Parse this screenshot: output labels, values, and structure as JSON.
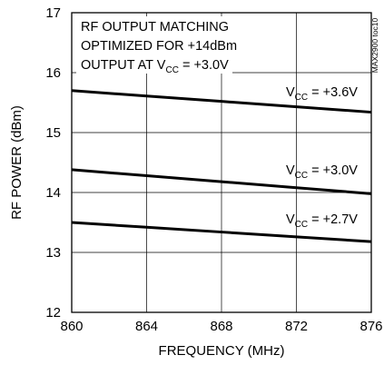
{
  "chart_data": {
    "type": "line",
    "title": "",
    "xlabel": "FREQUENCY (MHz)",
    "ylabel": "RF POWER (dBm)",
    "xlim": [
      860,
      876
    ],
    "ylim": [
      12,
      17
    ],
    "x_ticks": [
      "860",
      "864",
      "868",
      "872",
      "876"
    ],
    "y_ticks": [
      "12",
      "13",
      "14",
      "15",
      "16",
      "17"
    ],
    "grid": true,
    "annotation": {
      "line1": "RF OUTPUT MATCHING",
      "line2": "OPTIMIZED FOR +14dBm",
      "line3_prefix": "OUTPUT AT V",
      "line3_sub": "CC",
      "line3_suffix": " = +3.0V"
    },
    "figure_code": "MAX2900 toc10",
    "series": [
      {
        "label_prefix": "V",
        "label_sub": "CC",
        "label_suffix": " = +3.6V",
        "x": [
          860,
          864,
          868,
          872,
          876
        ],
        "values": [
          15.7,
          15.61,
          15.52,
          15.43,
          15.34
        ]
      },
      {
        "label_prefix": "V",
        "label_sub": "CC",
        "label_suffix": " = +3.0V",
        "x": [
          860,
          864,
          868,
          872,
          876
        ],
        "values": [
          14.38,
          14.28,
          14.18,
          14.08,
          13.98
        ]
      },
      {
        "label_prefix": "V",
        "label_sub": "CC",
        "label_suffix": " = +2.7V",
        "x": [
          860,
          864,
          868,
          872,
          876
        ],
        "values": [
          13.5,
          13.42,
          13.34,
          13.26,
          13.18
        ]
      }
    ]
  }
}
